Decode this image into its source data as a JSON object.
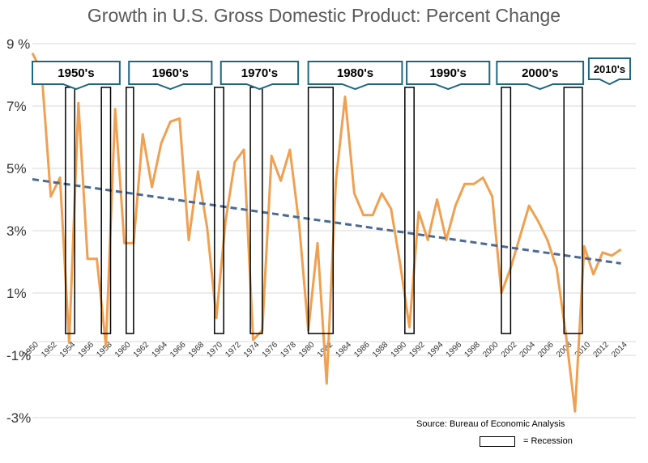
{
  "chart_data": {
    "type": "line",
    "title": "Growth in U.S. Gross Domestic Product:  Percent Change",
    "xlabel": "",
    "ylabel": "",
    "ylim": [
      -3.3,
      9.0
    ],
    "xlim": [
      1950,
      2015
    ],
    "yticks": [
      {
        "value": 9,
        "label": "9 %"
      },
      {
        "value": 7,
        "label": "7%"
      },
      {
        "value": 5,
        "label": "5%"
      },
      {
        "value": 3,
        "label": "3%"
      },
      {
        "value": 1,
        "label": "1%"
      },
      {
        "value": -1,
        "label": "-1%"
      },
      {
        "value": -3,
        "label": "-3%"
      }
    ],
    "xticks": [
      1950,
      1952,
      1954,
      1956,
      1958,
      1960,
      1962,
      1964,
      1966,
      1968,
      1970,
      1972,
      1974,
      1976,
      1978,
      1980,
      1982,
      1984,
      1986,
      1988,
      1990,
      1992,
      1994,
      1996,
      1998,
      2000,
      2002,
      2004,
      2006,
      2008,
      2010,
      2012,
      2014
    ],
    "grid": true,
    "x": [
      1950,
      1951,
      1952,
      1953,
      1954,
      1955,
      1956,
      1957,
      1958,
      1959,
      1960,
      1961,
      1962,
      1963,
      1964,
      1965,
      1966,
      1967,
      1968,
      1969,
      1970,
      1971,
      1972,
      1973,
      1974,
      1975,
      1976,
      1977,
      1978,
      1979,
      1980,
      1981,
      1982,
      1983,
      1984,
      1985,
      1986,
      1987,
      1988,
      1989,
      1990,
      1991,
      1992,
      1993,
      1994,
      1995,
      1996,
      1997,
      1998,
      1999,
      2000,
      2001,
      2002,
      2003,
      2004,
      2005,
      2006,
      2007,
      2008,
      2009,
      2010,
      2011,
      2012,
      2013,
      2014
    ],
    "series": [
      {
        "values": [
          8.7,
          8.1,
          4.1,
          4.7,
          -0.6,
          7.1,
          2.1,
          2.1,
          -0.7,
          6.9,
          2.6,
          2.6,
          6.1,
          4.4,
          5.8,
          6.5,
          6.6,
          2.7,
          4.9,
          3.1,
          0.2,
          3.3,
          5.2,
          5.6,
          -0.5,
          -0.2,
          5.4,
          4.6,
          5.6,
          3.2,
          -0.2,
          2.6,
          -1.9,
          4.6,
          7.3,
          4.2,
          3.5,
          3.5,
          4.2,
          3.7,
          1.9,
          -0.1,
          3.6,
          2.7,
          4.0,
          2.7,
          3.8,
          4.5,
          4.5,
          4.7,
          4.1,
          1.0,
          1.8,
          2.8,
          3.8,
          3.3,
          2.7,
          1.8,
          -0.3,
          -2.8,
          2.5,
          1.6,
          2.3,
          2.2,
          2.4
        ],
        "color": "#F0A050"
      },
      {
        "kind": "trend",
        "x": [
          1950,
          2014
        ],
        "values": [
          4.65,
          1.95
        ],
        "color": "#4A6A95"
      }
    ],
    "decades": [
      {
        "label": "1950's",
        "x0": 1950.0,
        "x1": 1959.5
      },
      {
        "label": "1960's",
        "x0": 1960.5,
        "x1": 1969.5
      },
      {
        "label": "1970's",
        "x0": 1970.5,
        "x1": 1978.9
      },
      {
        "label": "1980's",
        "x0": 1980.0,
        "x1": 1990.2
      },
      {
        "label": "1990's",
        "x0": 1990.7,
        "x1": 1999.7
      },
      {
        "label": "2000's",
        "x0": 2000.5,
        "x1": 2009.9
      },
      {
        "label": "2010's",
        "x0": 2010.5,
        "x1": 2015.0
      }
    ],
    "recessions": [
      [
        1953.6,
        1954.6
      ],
      [
        1957.5,
        1958.5
      ],
      [
        1960.2,
        1961.0
      ],
      [
        1969.8,
        1970.8
      ],
      [
        1973.7,
        1975.0
      ],
      [
        1980.0,
        1982.7
      ],
      [
        1990.5,
        1991.5
      ],
      [
        2001.0,
        2002.0
      ],
      [
        2007.8,
        2009.8
      ]
    ],
    "recession_y": [
      -0.3,
      7.6
    ],
    "annotations": {
      "source": "Source:  Bureau of Economic Analysis",
      "legend": "= Recession"
    }
  }
}
